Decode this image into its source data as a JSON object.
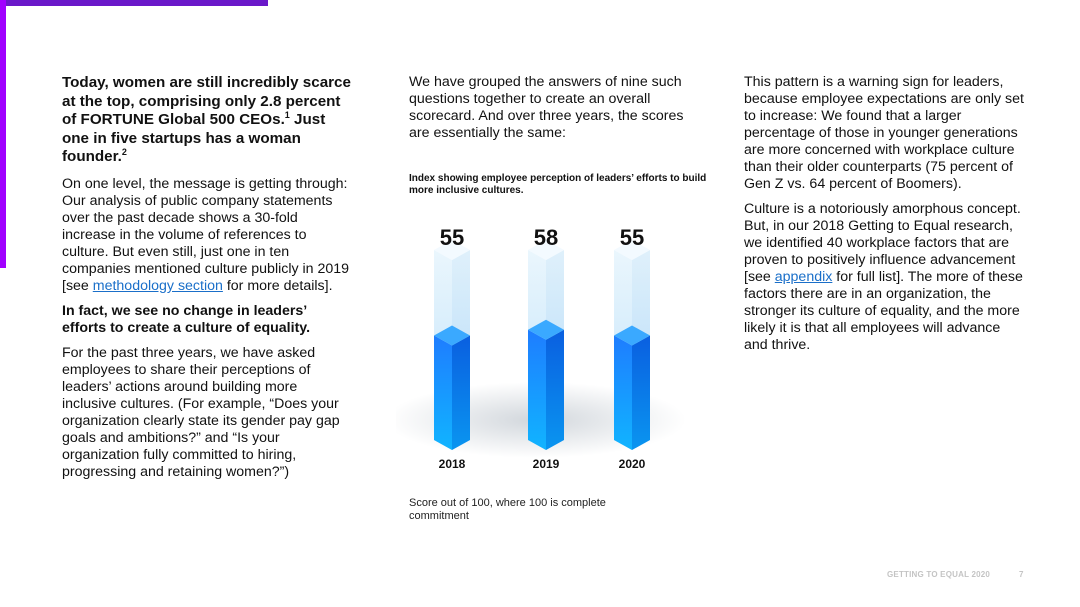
{
  "column1": {
    "lead_text": "Today, women are still incredibly scarce at the top, comprising only 2.8 percent of FORTUNE Global 500 CEOs.",
    "lead_sup1": "1",
    "lead_text2": " Just one in five startups has a woman founder.",
    "lead_sup2": "2",
    "p1_before": "On one level, the message is getting through: Our analysis of public company statements over the past decade shows a 30-fold increase in the volume of references to culture. But even still, just one in ten companies mentioned culture publicly in 2019 [see ",
    "p1_link": "methodology section",
    "p1_after": " for more details].",
    "p2_bold": "In fact, we see no change in leaders’ efforts to create a culture of equality.",
    "p3": "For the past three years, we have asked employees to share their perceptions of leaders’ actions around building more inclusive cultures. (For example, “Does your organization clearly state its gender pay gap goals and ambitions?” and “Is your organization fully committed to hiring, progressing and retaining women?”)"
  },
  "column2": {
    "p1": "We have grouped the answers of nine such questions together to create an overall scorecard. And over three years, the scores are essentially the same:"
  },
  "chart_data": {
    "type": "bar",
    "title": "Index showing employee perception of leaders’ efforts to build more inclusive cultures.",
    "categories": [
      "2018",
      "2019",
      "2020"
    ],
    "values": [
      55,
      58,
      55
    ],
    "ylim": [
      0,
      100
    ],
    "note": "Score out of 100, where 100 is complete commitment",
    "colors": {
      "filled": "#1a8cff",
      "empty": "#cfe8fb"
    }
  },
  "column3": {
    "p1": "This pattern is a warning sign for leaders, because employee expectations are only set to increase: We found that a larger percentage of those in younger generations are more concerned with workplace culture than their older counterparts (75 percent of Gen Z vs. 64 percent of Boomers).",
    "p2_before": "Culture is a notoriously amorphous concept. But, in our 2018 Getting to Equal research, we identified 40 workplace factors that are proven to positively influence advancement [see ",
    "p2_link": "appendix",
    "p2_after": " for full list]. The more of these factors there are in an organization, the stronger its culture of equality, and the more likely it is that all employees will advance and thrive."
  },
  "footer": {
    "title": "GETTING TO EQUAL 2020",
    "page": "7"
  }
}
